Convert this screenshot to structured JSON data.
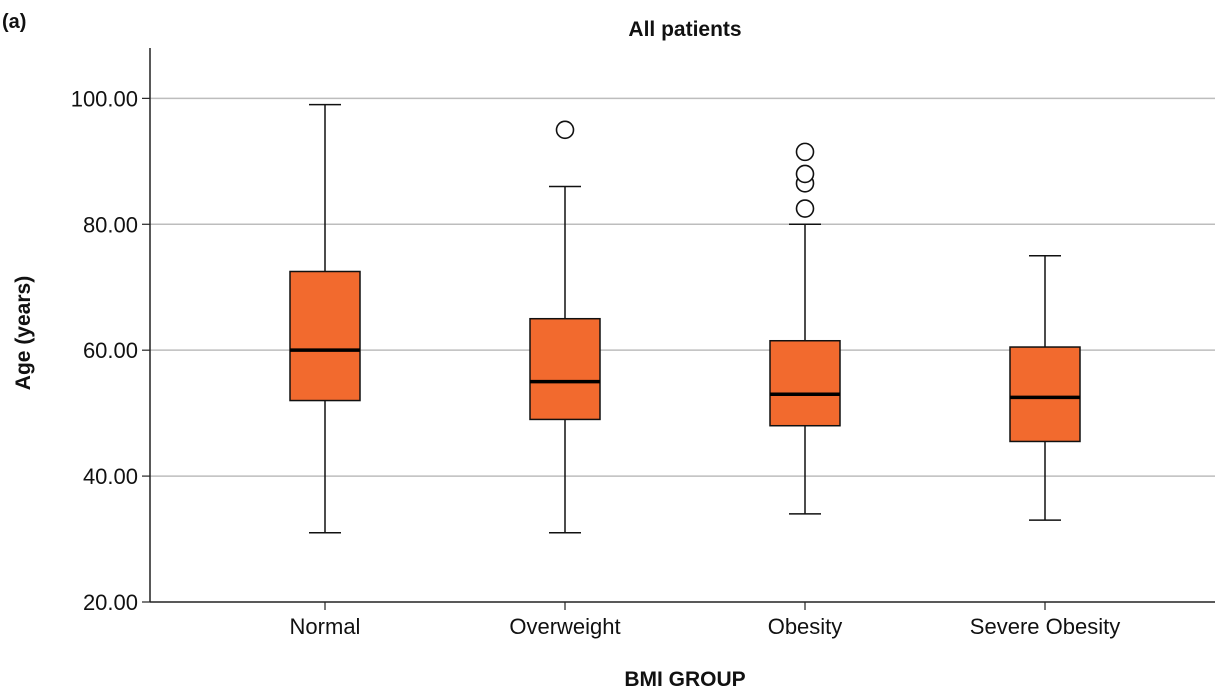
{
  "chart_data": {
    "type": "boxplot",
    "panel_label": "(a)",
    "title": "All patients",
    "xlabel": "BMI GROUP",
    "ylabel": "Age (years)",
    "ylim": [
      20,
      108
    ],
    "yticks": [
      20,
      40,
      60,
      80,
      100
    ],
    "ytick_labels": [
      "20.00",
      "40.00",
      "60.00",
      "80.00",
      "100.00"
    ],
    "grid": true,
    "box_color": "#f26a2e",
    "categories": [
      "Normal",
      "Overweight",
      "Obesity",
      "Severe Obesity"
    ],
    "boxes": [
      {
        "category": "Normal",
        "min": 31,
        "q1": 52,
        "median": 60,
        "q3": 72.5,
        "max": 99,
        "outliers": []
      },
      {
        "category": "Overweight",
        "min": 31,
        "q1": 49,
        "median": 55,
        "q3": 65,
        "max": 86,
        "outliers": [
          95
        ]
      },
      {
        "category": "Obesity",
        "min": 34,
        "q1": 48,
        "median": 53,
        "q3": 61.5,
        "max": 80,
        "outliers": [
          82.5,
          86.5,
          88,
          91.5
        ]
      },
      {
        "category": "Severe Obesity",
        "min": 33,
        "q1": 45.5,
        "median": 52.5,
        "q3": 60.5,
        "max": 75,
        "outliers": []
      }
    ]
  }
}
